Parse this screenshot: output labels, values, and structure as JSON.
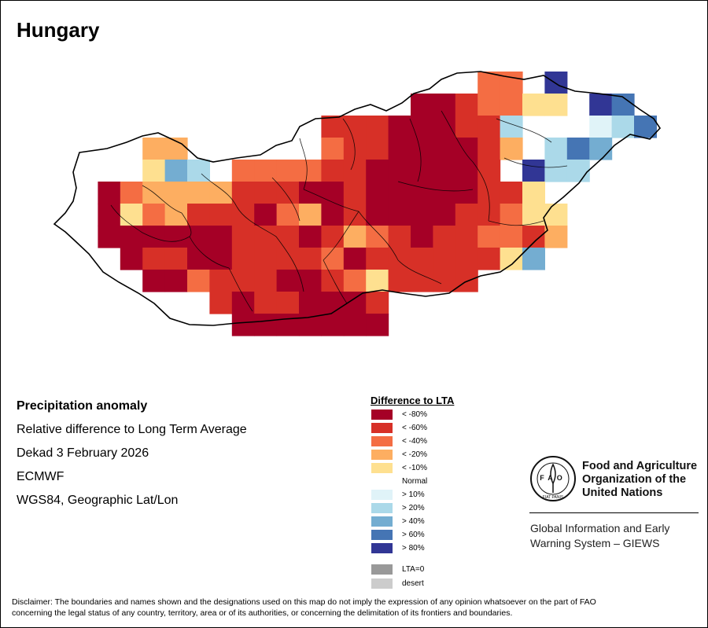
{
  "title": "Hungary",
  "info": {
    "heading": "Precipitation anomaly",
    "line1": "Relative difference to Long Term Average",
    "line2": "Dekad 3 February 2026",
    "line3": "ECMWF",
    "line4": "WGS84, Geographic Lat/Lon"
  },
  "legend": {
    "title": "Difference to LTA",
    "items": [
      {
        "label": "< -80%",
        "color": "#a50026"
      },
      {
        "label": "< -60%",
        "color": "#d73027"
      },
      {
        "label": "< -40%",
        "color": "#f46d43"
      },
      {
        "label": "< -20%",
        "color": "#fdae61"
      },
      {
        "label": "< -10%",
        "color": "#fee090"
      },
      {
        "label": "Normal",
        "color": "#ffffff"
      },
      {
        "label": "> 10%",
        "color": "#e0f3f8"
      },
      {
        "label": "> 20%",
        "color": "#abd9e9"
      },
      {
        "label": "> 40%",
        "color": "#74add1"
      },
      {
        "label": "> 60%",
        "color": "#4575b4"
      },
      {
        "label": "> 80%",
        "color": "#313695"
      },
      {
        "label": "LTA=0",
        "color": "#999999"
      },
      {
        "label": "desert",
        "color": "#cccccc"
      }
    ]
  },
  "fao": {
    "org_line1": "Food and Agriculture",
    "org_line2": "Organization of the",
    "org_line3": "United Nations",
    "giews_line1": "Global Information and Early",
    "giews_line2": "Warning System – GIEWS",
    "logo_text": "FAO",
    "logo_ring_text": "FIAT PANIS"
  },
  "disclaimer_line1": "Disclaimer: The boundaries and names shown and the designations used on this map do not imply the expression of any opinion whatsoever on the part of FAO",
  "disclaimer_line2": "concerning the legal status of any country, territory, area or of its authorities, or concerning the delimitation of its frontiers and boundaries.",
  "map": {
    "class_codes": "0 = < -80%, 1 = < -60%, 2 = < -40%, 3 = < -20%, 4 = < -10%, 5 = Normal, 6 = > 10%, 7 = > 20%, 8 = > 40%, 9 = > 60%, 10 = > 80%",
    "grid_columns": 27,
    "grid_rows": 12,
    "anomaly_classes": [
      [
        5,
        5,
        5,
        5,
        5,
        5,
        5,
        5,
        5,
        5,
        5,
        5,
        5,
        5,
        5,
        5,
        5,
        5,
        2,
        2,
        5,
        10,
        5,
        5,
        5,
        5,
        5
      ],
      [
        5,
        5,
        5,
        5,
        5,
        5,
        5,
        5,
        5,
        5,
        5,
        5,
        5,
        5,
        5,
        0,
        0,
        1,
        2,
        2,
        4,
        4,
        5,
        10,
        9,
        5,
        5
      ],
      [
        5,
        5,
        5,
        5,
        5,
        5,
        5,
        5,
        5,
        5,
        5,
        1,
        1,
        1,
        0,
        0,
        0,
        1,
        1,
        7,
        5,
        5,
        5,
        6,
        7,
        9,
        5
      ],
      [
        5,
        5,
        5,
        3,
        3,
        5,
        5,
        5,
        5,
        5,
        5,
        2,
        1,
        1,
        0,
        0,
        0,
        0,
        1,
        3,
        5,
        7,
        9,
        8,
        5,
        5,
        5
      ],
      [
        5,
        5,
        5,
        4,
        8,
        7,
        5,
        2,
        2,
        2,
        2,
        1,
        1,
        0,
        0,
        0,
        0,
        0,
        1,
        5,
        10,
        7,
        7,
        5,
        5,
        5,
        5
      ],
      [
        5,
        0,
        2,
        3,
        3,
        3,
        3,
        1,
        1,
        1,
        0,
        0,
        1,
        0,
        0,
        0,
        0,
        0,
        1,
        1,
        4,
        5,
        5,
        5,
        5,
        5,
        5
      ],
      [
        5,
        0,
        4,
        2,
        3,
        1,
        1,
        1,
        0,
        2,
        3,
        0,
        1,
        0,
        0,
        0,
        0,
        1,
        1,
        2,
        4,
        4,
        5,
        5,
        5,
        5,
        5
      ],
      [
        5,
        0,
        0,
        0,
        0,
        0,
        0,
        1,
        1,
        1,
        0,
        1,
        3,
        2,
        1,
        0,
        1,
        1,
        2,
        2,
        1,
        3,
        5,
        5,
        5,
        5,
        5
      ],
      [
        5,
        5,
        0,
        1,
        1,
        0,
        0,
        1,
        1,
        1,
        1,
        2,
        0,
        1,
        1,
        1,
        1,
        1,
        1,
        4,
        8,
        5,
        5,
        5,
        5,
        5,
        5
      ],
      [
        5,
        5,
        5,
        0,
        0,
        2,
        1,
        1,
        1,
        0,
        0,
        1,
        2,
        4,
        1,
        1,
        1,
        1,
        5,
        5,
        5,
        5,
        5,
        5,
        5,
        5,
        5
      ],
      [
        5,
        5,
        5,
        5,
        5,
        5,
        1,
        0,
        1,
        1,
        0,
        0,
        0,
        1,
        5,
        5,
        5,
        5,
        5,
        5,
        5,
        5,
        5,
        5,
        5,
        5,
        5
      ],
      [
        5,
        5,
        5,
        5,
        5,
        5,
        5,
        0,
        0,
        0,
        0,
        0,
        0,
        0,
        5,
        5,
        5,
        5,
        5,
        5,
        5,
        5,
        5,
        5,
        5,
        5,
        5
      ]
    ]
  }
}
